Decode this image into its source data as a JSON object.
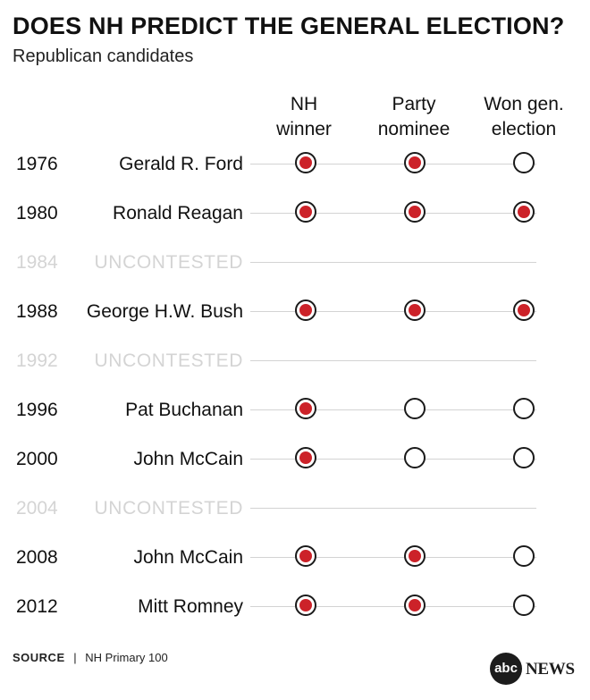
{
  "title": "DOES NH PREDICT THE GENERAL ELECTION?",
  "subtitle": "Republican candidates",
  "columns": [
    "NH\nwinner",
    "Party\nnominee",
    "Won gen.\nelection"
  ],
  "colors": {
    "filled": "#cc2229",
    "ring": "#1a1a1a",
    "uncontested": "#d4d4d4",
    "rule": "#d3d3d3"
  },
  "chart_data": {
    "type": "table",
    "title": "DOES NH PREDICT THE GENERAL ELECTION?",
    "subtitle": "Republican candidates",
    "columns": [
      "NH\nwinner",
      "Party\nnominee",
      "Won gen.\nelection"
    ],
    "rows": [
      {
        "year": "1976",
        "name": "Gerald R. Ford",
        "values": [
          true,
          true,
          false
        ]
      },
      {
        "year": "1980",
        "name": "Ronald Reagan",
        "values": [
          true,
          true,
          true
        ]
      },
      {
        "year": "1984",
        "name": "UNCONTESTED",
        "uncontested": true
      },
      {
        "year": "1988",
        "name": "George H.W. Bush",
        "values": [
          true,
          true,
          true
        ]
      },
      {
        "year": "1992",
        "name": "UNCONTESTED",
        "uncontested": true
      },
      {
        "year": "1996",
        "name": "Pat Buchanan",
        "values": [
          true,
          false,
          false
        ]
      },
      {
        "year": "2000",
        "name": "John McCain",
        "values": [
          true,
          false,
          false
        ]
      },
      {
        "year": "2004",
        "name": "UNCONTESTED",
        "uncontested": true
      },
      {
        "year": "2008",
        "name": "John McCain",
        "values": [
          true,
          true,
          false
        ]
      },
      {
        "year": "2012",
        "name": "Mitt Romney",
        "values": [
          true,
          true,
          false
        ]
      }
    ]
  },
  "footer": {
    "source_label": "SOURCE",
    "separator": "|",
    "source_text": "NH Primary 100"
  },
  "logo": {
    "circle_text": "abc",
    "word": "NEWS"
  }
}
